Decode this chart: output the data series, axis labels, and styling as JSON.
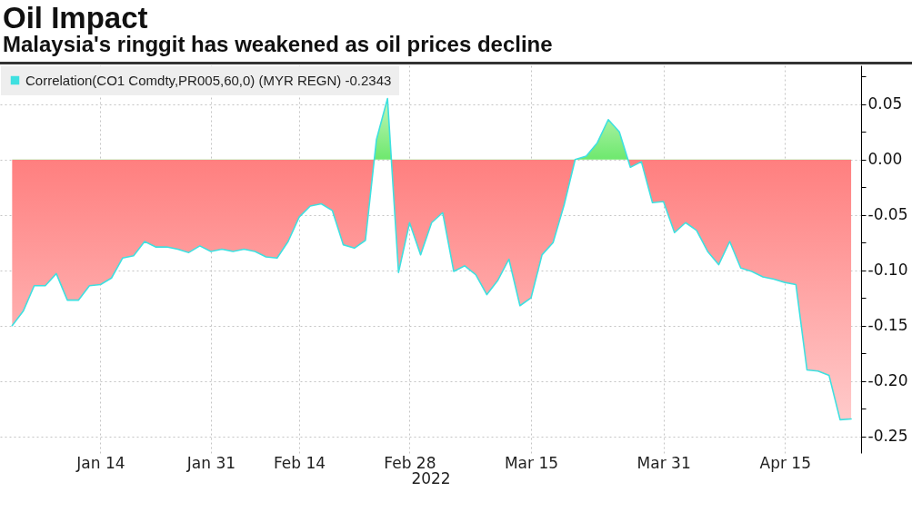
{
  "chart_data": {
    "type": "area",
    "title": "Oil Impact",
    "subtitle": "Malaysia's ringgit has weakened as oil prices decline",
    "xlabel": "2022",
    "categories": [
      null,
      null,
      null,
      null,
      null,
      null,
      null,
      null,
      "Jan 14",
      null,
      null,
      null,
      null,
      null,
      null,
      null,
      null,
      null,
      "Jan 31",
      null,
      null,
      null,
      null,
      null,
      null,
      null,
      "Feb 14",
      null,
      null,
      null,
      null,
      null,
      null,
      null,
      null,
      null,
      "Feb 28",
      null,
      null,
      null,
      null,
      null,
      null,
      null,
      null,
      null,
      null,
      "Mar 15",
      null,
      null,
      null,
      null,
      null,
      null,
      null,
      null,
      null,
      null,
      null,
      "Mar 31",
      null,
      null,
      null,
      null,
      null,
      null,
      null,
      null,
      null,
      null,
      "Apr 15",
      null,
      null,
      null,
      null,
      null,
      null
    ],
    "series": [
      {
        "name": "Correlation(CO1 Comdty,PR005,60,0) (MYR REGN) -0.2343",
        "color": "#3ee0e0",
        "values": [
          -0.15,
          -0.137,
          -0.114,
          -0.114,
          -0.103,
          -0.127,
          -0.127,
          -0.114,
          -0.113,
          -0.107,
          -0.089,
          -0.087,
          -0.074,
          -0.079,
          -0.079,
          -0.081,
          -0.084,
          -0.078,
          -0.083,
          -0.081,
          -0.083,
          -0.081,
          -0.083,
          -0.088,
          -0.089,
          -0.074,
          -0.052,
          -0.042,
          -0.04,
          -0.046,
          -0.077,
          -0.08,
          -0.073,
          0.018,
          0.055,
          -0.102,
          -0.057,
          -0.086,
          -0.057,
          -0.048,
          -0.101,
          -0.096,
          -0.104,
          -0.122,
          -0.109,
          -0.09,
          -0.132,
          -0.125,
          -0.086,
          -0.075,
          -0.041,
          0.0,
          0.003,
          0.015,
          0.036,
          0.025,
          -0.007,
          -0.002,
          -0.039,
          -0.038,
          -0.066,
          -0.057,
          -0.064,
          -0.083,
          -0.095,
          -0.074,
          -0.098,
          -0.101,
          -0.106,
          -0.108,
          -0.111,
          -0.113,
          -0.19,
          -0.191,
          -0.195,
          -0.235,
          -0.2343
        ]
      }
    ],
    "ylim": [
      -0.265,
      0.085
    ],
    "yticks": [
      -0.25,
      {
        "value": -0.225,
        "label": null
      },
      {
        "value": -0.2,
        "label": "-0.20"
      },
      {
        "value": -0.175,
        "label": null
      },
      -0.15,
      {
        "value": -0.125,
        "label": null
      },
      {
        "value": -0.1,
        "label": "-0.10"
      },
      {
        "value": -0.075,
        "label": null
      },
      -0.05,
      {
        "value": -0.025,
        "label": null
      },
      {
        "value": 0,
        "label": "0.00"
      },
      {
        "value": 0.025,
        "label": null
      },
      0.05,
      {
        "value": 0.075,
        "label": null
      }
    ],
    "grid": true,
    "legend": "top left"
  }
}
